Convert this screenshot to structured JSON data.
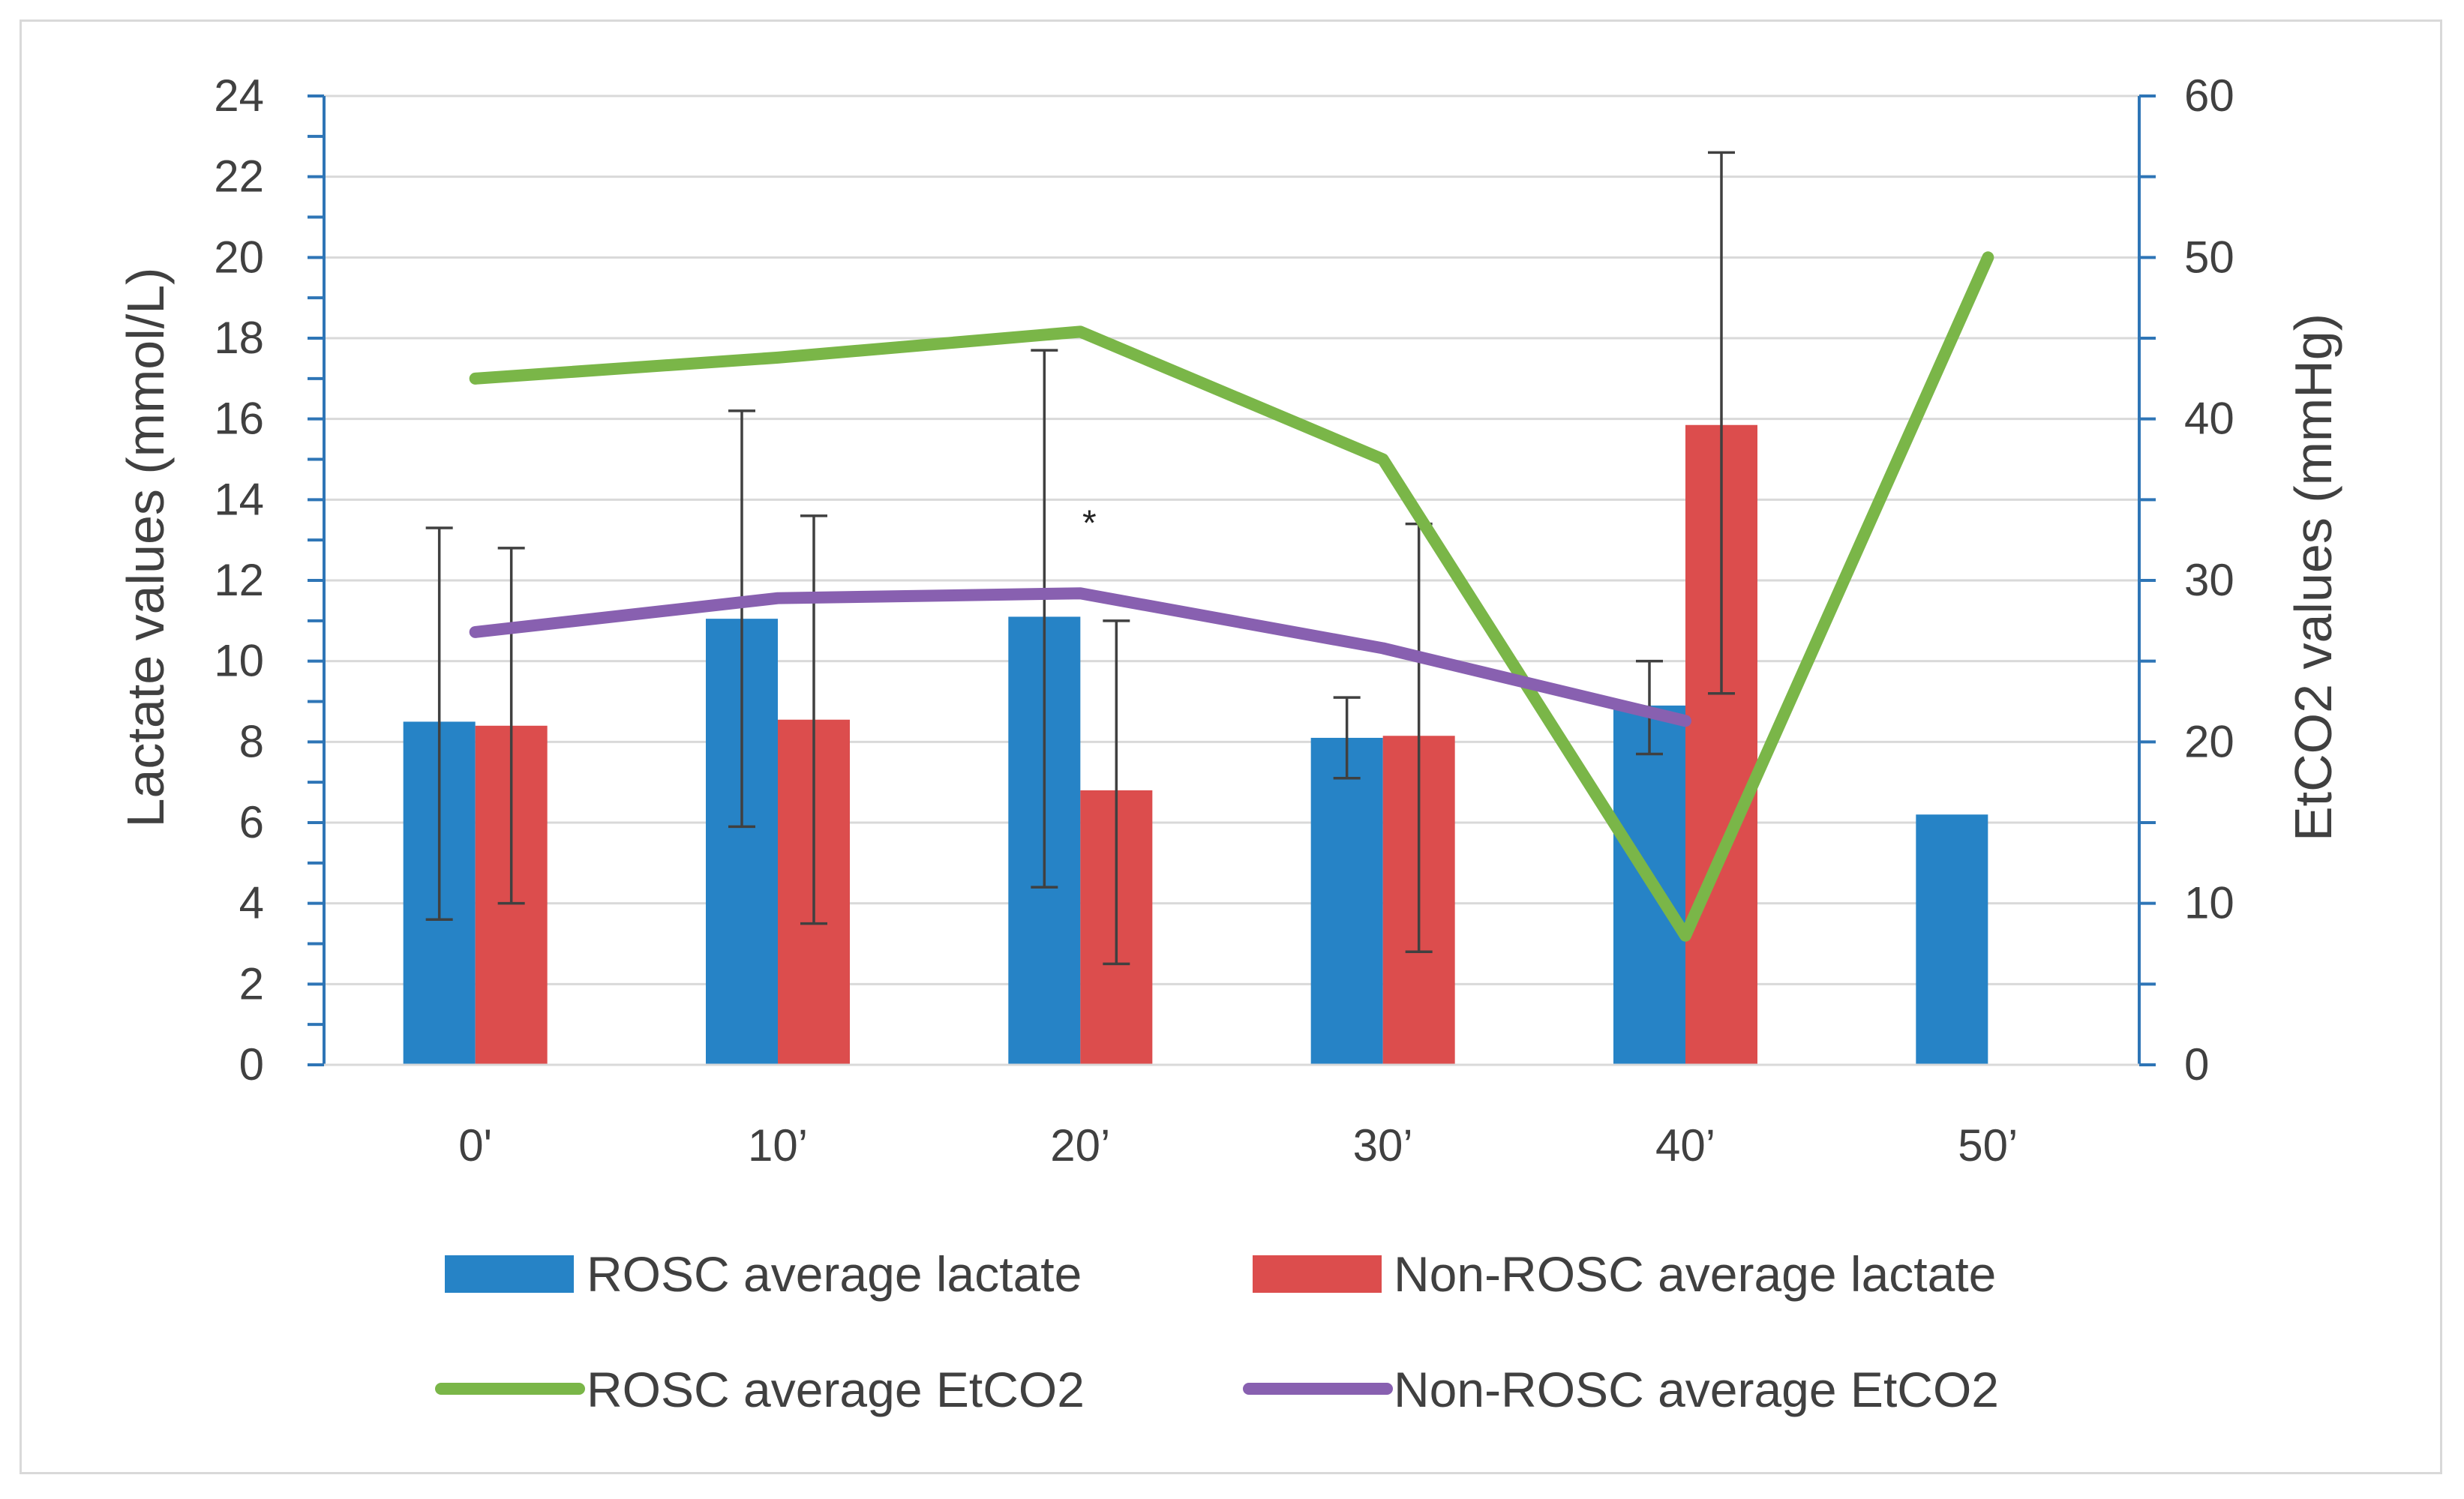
{
  "chart_data": {
    "type": "bar",
    "categories": [
      "0'",
      "10’",
      "20’",
      "30’",
      "40’",
      "50’"
    ],
    "series": [
      {
        "name": "ROSC average lactate",
        "kind": "bar",
        "axis": "left",
        "color": "#2683c6",
        "values": [
          8.5,
          11.05,
          11.1,
          8.1,
          8.9,
          6.2
        ],
        "error_low": [
          3.6,
          5.9,
          4.4,
          7.1,
          7.7,
          null
        ],
        "error_high": [
          13.3,
          16.2,
          17.7,
          9.1,
          10.0,
          null
        ]
      },
      {
        "name": "Non-ROSC average lactate",
        "kind": "bar",
        "axis": "left",
        "color": "#dc4d4d",
        "values": [
          8.4,
          8.55,
          6.8,
          8.15,
          15.85,
          null
        ],
        "error_low": [
          4.0,
          3.5,
          2.5,
          2.8,
          9.2,
          null
        ],
        "error_high": [
          12.8,
          13.6,
          11.0,
          13.4,
          22.6,
          null
        ]
      },
      {
        "name": "ROSC average EtCO2",
        "kind": "line",
        "axis": "right",
        "color": "#7ab648",
        "values": [
          42.5,
          43.8,
          45.4,
          37.5,
          8.0,
          50.0
        ]
      },
      {
        "name": "Non-ROSC average EtCO2",
        "kind": "line",
        "axis": "right",
        "color": "#8860b0",
        "values": [
          26.8,
          28.9,
          29.2,
          25.8,
          21.3,
          null
        ]
      }
    ],
    "y_left": {
      "label": "Lactate values (mmol/L)",
      "min": 0,
      "max": 24,
      "major": 2,
      "minor": 1,
      "ticks": [
        "0",
        "2",
        "4",
        "6",
        "8",
        "10",
        "12",
        "14",
        "16",
        "18",
        "20",
        "22",
        "24"
      ]
    },
    "y_right": {
      "label": "EtCO2 values (mmHg)",
      "min": 0,
      "max": 60,
      "major": 10,
      "minor": 5,
      "ticks": [
        "0",
        "10",
        "20",
        "30",
        "40",
        "50",
        "60"
      ]
    },
    "annotations": [
      {
        "text": "*",
        "category": "20’",
        "value": 13.5
      }
    ],
    "grid": true,
    "legend_position": "bottom"
  },
  "legend": {
    "rosc_lactate": "ROSC average lactate",
    "nonrosc_lactate": "Non-ROSC average lactate",
    "rosc_etco2": "ROSC average EtCO2",
    "nonrosc_etco2": "Non-ROSC average EtCO2"
  },
  "colors": {
    "axis": "#2e75b6",
    "grid": "#d9d9d9",
    "error_bar": "#404040"
  }
}
